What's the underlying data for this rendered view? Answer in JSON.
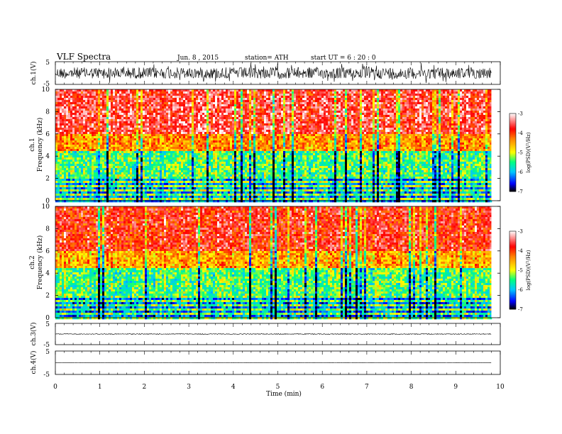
{
  "header": {
    "title": "VLF  Spectra",
    "date": "Jun. 8  , 2015",
    "station": "station= ATH",
    "start": "start  UT =   6  : 20 : 0"
  },
  "chart_data": [
    {
      "type": "line",
      "name": "ch1-waveform",
      "ylabel": "ch.1(V)",
      "ylim": [
        -5,
        5
      ],
      "yticks": [
        "5",
        "-5"
      ],
      "xlim": [
        0,
        10
      ],
      "description_level": "dense noisy waveform around 0 V, amplitude about ±2 V"
    },
    {
      "type": "heatmap",
      "name": "ch1-spectrogram",
      "ylabel": "ch.1\nFrequency  (kHz)",
      "ylabel_lines": [
        "ch.1",
        "Frequency  (kHz)"
      ],
      "ylim": [
        0,
        10
      ],
      "yticks": [
        "0",
        "2",
        "4",
        "6",
        "8",
        "10"
      ],
      "xlim": [
        0,
        9.8
      ],
      "colorbar": {
        "label": "log(PSD)(V²/Hz)",
        "range": [
          -7,
          -3
        ],
        "ticks": [
          "-3",
          "-4",
          "-5",
          "-6",
          "-7"
        ],
        "colors": [
          "#000000",
          "#0000ff",
          "#00c8ff",
          "#00ff80",
          "#ffff00",
          "#ff8000",
          "#ff0000",
          "#ffffff"
        ]
      },
      "bands": [
        {
          "from_khz": 0,
          "to_khz": 2,
          "level": -5.2
        },
        {
          "from_khz": 2,
          "to_khz": 4.5,
          "level": -5.4
        },
        {
          "from_khz": 4.5,
          "to_khz": 6,
          "level": -4.4
        },
        {
          "from_khz": 6,
          "to_khz": 10,
          "level": -3.6
        }
      ]
    },
    {
      "type": "heatmap",
      "name": "ch2-spectrogram",
      "ylabel": "ch.2\nFrequency  (kHz)",
      "ylabel_lines": [
        "ch.2",
        "Frequency  (kHz)"
      ],
      "ylim": [
        0,
        10
      ],
      "yticks": [
        "0",
        "2",
        "4",
        "6",
        "8",
        "10"
      ],
      "xlim": [
        0,
        9.8
      ],
      "colorbar": {
        "label": "log(PSD)(V²/Hz)",
        "range": [
          -7,
          -3
        ],
        "ticks": [
          "-3",
          "-4",
          "-5",
          "-6",
          "-7"
        ],
        "colors": [
          "#000000",
          "#0000ff",
          "#00c8ff",
          "#00ff80",
          "#ffff00",
          "#ff8000",
          "#ff0000",
          "#ffffff"
        ]
      },
      "bands": [
        {
          "from_khz": 0,
          "to_khz": 2,
          "level": -5.3
        },
        {
          "from_khz": 2,
          "to_khz": 4.5,
          "level": -5.4
        },
        {
          "from_khz": 4.5,
          "to_khz": 6,
          "level": -4.5
        },
        {
          "from_khz": 6,
          "to_khz": 10,
          "level": -3.8
        }
      ]
    },
    {
      "type": "line",
      "name": "ch3-waveform",
      "ylabel": "ch.3(V)",
      "ylim": [
        -5,
        5
      ],
      "yticks": [
        "5",
        "-5"
      ],
      "xlim": [
        0,
        10
      ],
      "description_level": "near-flat trace around 0 V"
    },
    {
      "type": "line",
      "name": "ch4-waveform",
      "ylabel": "ch.4(V)",
      "ylim": [
        -5,
        5
      ],
      "yticks": [
        "5",
        "-5"
      ],
      "xlim": [
        0,
        10
      ],
      "description_level": "flat trace around 0 V"
    }
  ],
  "xaxis": {
    "label": "Time  (min)",
    "range": [
      0,
      10
    ],
    "ticks": [
      "0",
      "1",
      "2",
      "3",
      "4",
      "5",
      "6",
      "7",
      "8",
      "9",
      "10"
    ]
  }
}
